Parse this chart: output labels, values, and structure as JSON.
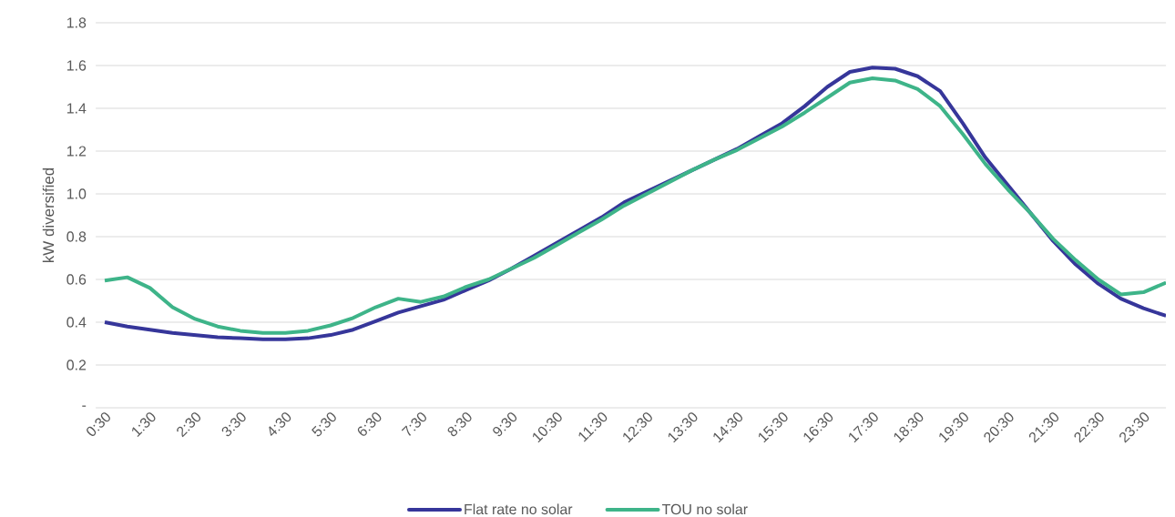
{
  "chart_data": {
    "type": "line",
    "ylabel": "kW diversified",
    "categories": [
      "0:30",
      null,
      "1:30",
      null,
      "2:30",
      null,
      "3:30",
      null,
      "4:30",
      null,
      "5:30",
      null,
      "6:30",
      null,
      "7:30",
      null,
      "8:30",
      null,
      "9:30",
      null,
      "10:30",
      null,
      "11:30",
      null,
      "12:30",
      null,
      "13:30",
      null,
      "14:30",
      null,
      "15:30",
      null,
      "16:30",
      null,
      "17:30",
      null,
      "18:30",
      null,
      "19:30",
      null,
      "20:30",
      null,
      "21:30",
      null,
      "22:30",
      null,
      "23:30",
      null
    ],
    "series": [
      {
        "name": "Flat rate no solar",
        "color": "#36369a",
        "values": [
          0.4,
          0.38,
          0.365,
          0.35,
          0.34,
          0.33,
          0.325,
          0.32,
          0.32,
          0.325,
          0.34,
          0.365,
          0.405,
          0.445,
          0.475,
          0.505,
          0.55,
          0.595,
          0.65,
          0.71,
          0.77,
          0.83,
          0.89,
          0.96,
          1.01,
          1.06,
          1.11,
          1.16,
          1.21,
          1.27,
          1.33,
          1.41,
          1.5,
          1.57,
          1.59,
          1.585,
          1.55,
          1.48,
          1.33,
          1.17,
          1.04,
          0.91,
          0.78,
          0.67,
          0.58,
          0.51,
          0.465,
          0.43
        ]
      },
      {
        "name": "TOU no solar",
        "color": "#3eb489",
        "values": [
          0.595,
          0.61,
          0.56,
          0.47,
          0.415,
          0.38,
          0.36,
          0.35,
          0.35,
          0.36,
          0.385,
          0.42,
          0.47,
          0.51,
          0.495,
          0.52,
          0.565,
          0.6,
          0.65,
          0.7,
          0.76,
          0.82,
          0.88,
          0.945,
          1.0,
          1.055,
          1.11,
          1.16,
          1.205,
          1.26,
          1.315,
          1.38,
          1.45,
          1.52,
          1.54,
          1.53,
          1.49,
          1.41,
          1.28,
          1.14,
          1.02,
          0.91,
          0.79,
          0.69,
          0.6,
          0.53,
          0.54,
          0.585
        ]
      }
    ],
    "ylim": [
      0,
      1.8
    ],
    "yticks": [
      {
        "value": 0,
        "label": "-"
      },
      0.2,
      0.4,
      0.6,
      0.8,
      {
        "value": 1.0,
        "label": "1.0"
      },
      1.2,
      1.4,
      1.6,
      1.8
    ],
    "grid": "y",
    "legend": "bottom"
  }
}
